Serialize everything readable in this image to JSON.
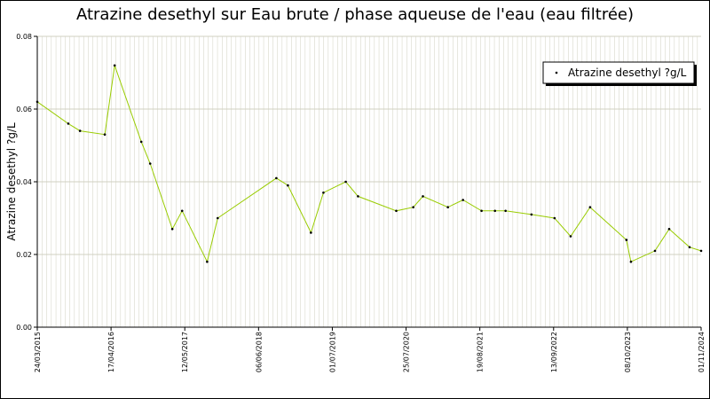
{
  "chart_data": {
    "type": "line",
    "title": "Atrazine desethyl sur Eau brute / phase aqueuse de l'eau (eau filtrée)",
    "ylabel": "Atrazine desethyl ?g/L",
    "x": [
      "24/03/2015",
      "04/09/2015",
      "05/11/2015",
      "15/03/2016",
      "06/05/2016",
      "24/09/2016",
      "10/11/2016",
      "07/03/2017",
      "28/04/2017",
      "07/09/2017",
      "02/11/2017",
      "08/09/2018",
      "08/11/2018",
      "10/03/2019",
      "15/05/2019",
      "10/09/2019",
      "14/11/2019",
      "03/06/2020",
      "01/09/2020",
      "22/10/2020",
      "03/03/2021",
      "22/05/2021",
      "28/08/2021",
      "07/11/2021",
      "02/01/2022",
      "19/05/2022",
      "18/09/2022",
      "12/12/2022",
      "25/03/2023",
      "03/10/2023",
      "27/10/2023",
      "02/03/2024",
      "16/05/2024",
      "01/09/2024",
      "01/11/2024"
    ],
    "series": [
      {
        "name": "Atrazine desethyl ?g/L",
        "color": "#99cc00",
        "values": [
          0.062,
          0.056,
          0.054,
          0.053,
          0.072,
          0.051,
          0.045,
          0.027,
          0.032,
          0.018,
          0.03,
          0.041,
          0.039,
          0.026,
          0.037,
          0.04,
          0.036,
          0.032,
          0.033,
          0.036,
          0.033,
          0.035,
          0.032,
          0.032,
          0.032,
          0.031,
          0.03,
          0.025,
          0.033,
          0.024,
          0.018,
          0.021,
          0.027,
          0.022,
          0.021
        ]
      }
    ],
    "xlim": [
      "24/03/2015",
      "01/11/2024"
    ],
    "xticks": [
      "24/03/2015",
      "17/04/2016",
      "12/05/2017",
      "06/06/2018",
      "01/07/2019",
      "25/07/2020",
      "19/08/2021",
      "13/09/2022",
      "08/10/2023",
      "01/11/2024"
    ],
    "ylim": [
      0,
      0.08
    ],
    "yticks": [
      {
        "value": 0,
        "label": "0.00"
      },
      {
        "value": 0.02,
        "label": "0.02"
      },
      {
        "value": 0.04,
        "label": "0.04"
      },
      {
        "value": 0.06,
        "label": "0.06"
      },
      {
        "value": 0.08,
        "label": "0.08"
      }
    ],
    "grid": true,
    "legend": "top-right"
  }
}
